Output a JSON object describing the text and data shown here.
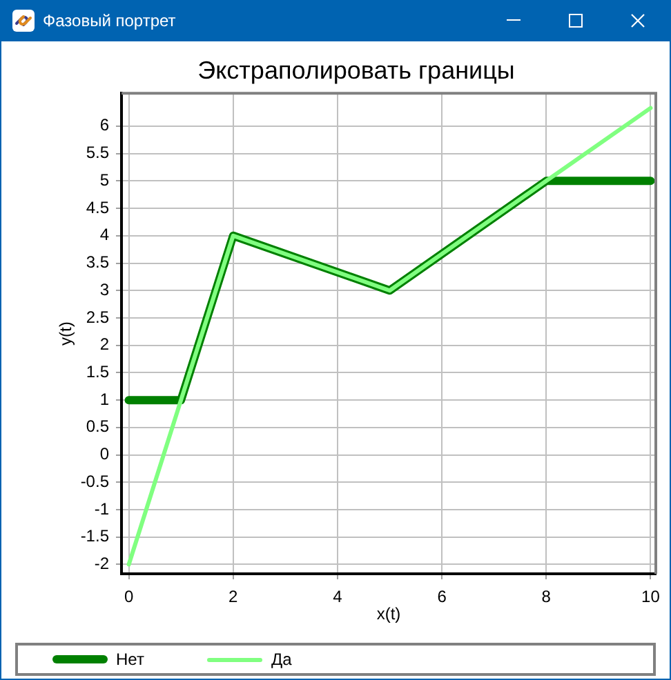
{
  "chart_data": {
    "type": "line",
    "title": "Экстраполировать границы",
    "xlabel": "x(t)",
    "ylabel": "y(t)",
    "annotations": [
      "Фазовый портрет"
    ],
    "series": [
      {
        "name": "Нет",
        "color": "#008000",
        "x": [
          0,
          1,
          2,
          5,
          8,
          10
        ],
        "values": [
          1,
          1,
          4,
          3,
          5,
          5
        ]
      },
      {
        "name": "Да",
        "color": "#80ff80",
        "x": [
          0,
          1,
          2,
          5,
          8,
          10
        ],
        "values": [
          -2,
          1,
          4,
          3,
          5,
          6.33
        ]
      }
    ],
    "xlim": [
      -0.14,
      10.1
    ],
    "xticks": [
      0,
      2,
      4,
      6,
      8,
      10
    ],
    "ylim": [
      -2.17,
      6.6
    ],
    "yticks": [
      -2,
      -1.5,
      -1,
      -0.5,
      0,
      0.5,
      1,
      1.5,
      2,
      2.5,
      3,
      3.5,
      4,
      4.5,
      5,
      5.5,
      6
    ],
    "grid": true,
    "legend": "bottom",
    "marker": "none",
    "line_style": "solid"
  }
}
